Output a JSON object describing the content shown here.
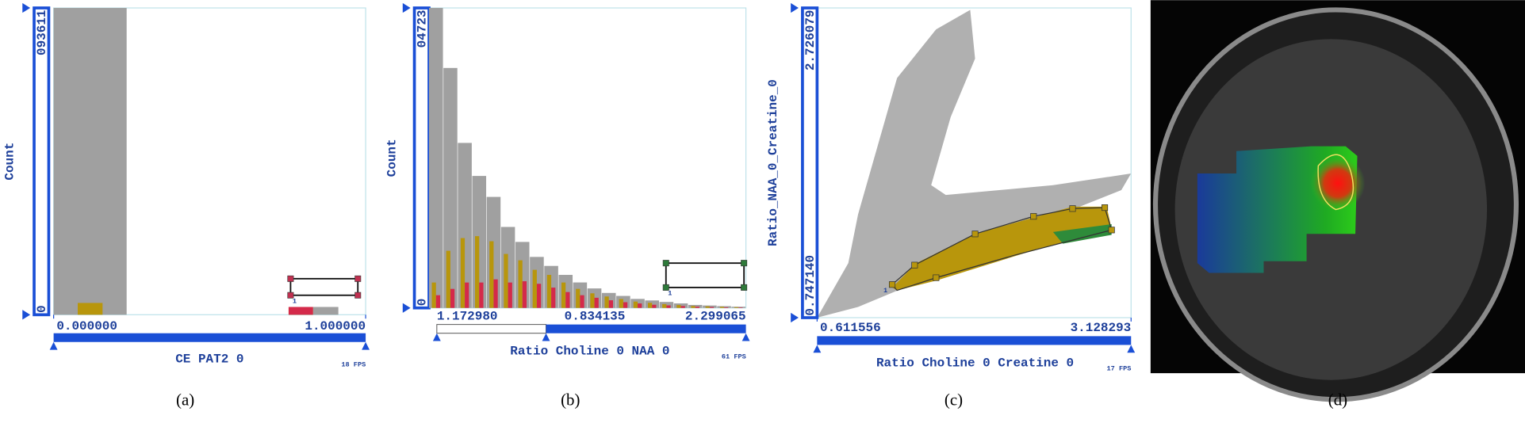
{
  "captions": [
    "(a)",
    "(b)",
    "(c)",
    "(d)"
  ],
  "chart_data": [
    {
      "type": "histogram",
      "y_label": "Count",
      "x_label": "CE PAT2 0",
      "fps": "18 FPS",
      "widget_label": "1",
      "xlim": [
        0,
        1
      ],
      "xticks": [
        {
          "value": 0,
          "label": "0.000000"
        },
        {
          "value": 1,
          "label": "1.000000"
        }
      ],
      "ylim": [
        0,
        93611
      ],
      "yticks": [
        0,
        {
          "value": 93611,
          "label": "093611"
        }
      ],
      "bins": [
        0,
        0.234
      ],
      "series": [
        {
          "color": "#a0a0a0",
          "values": [
            93611
          ]
        },
        {
          "color": "#b8960c",
          "values": [
            3600
          ]
        }
      ]
    },
    {
      "type": "bar",
      "y_label": "Count",
      "x_label": "Ratio Choline 0 NAA 0",
      "fps": "61 FPS",
      "widget_label": "1",
      "x_labels": [
        "1.172980",
        "0.834135",
        "2.299065"
      ],
      "ylim": [
        0,
        4723
      ],
      "yticks": [
        0,
        {
          "value": 4723,
          "label": "04723"
        }
      ],
      "categories": [
        null,
        null,
        null,
        null,
        null,
        null,
        null,
        null,
        null,
        null,
        null,
        null,
        null,
        null,
        null,
        null,
        null,
        null,
        null,
        null,
        null,
        null
      ],
      "series": [
        {
          "color": "#a0a0a0",
          "values": [
            4723,
            3778,
            2598,
            2078,
            1748,
            1275,
            1039,
            803,
            661,
            520,
            401,
            307,
            236,
            189,
            142,
            118,
            94,
            71,
            47,
            38,
            28,
            19
          ]
        },
        {
          "color": "#b8960c",
          "values": [
            400,
            900,
            1100,
            1130,
            1050,
            850,
            750,
            600,
            520,
            400,
            300,
            230,
            180,
            140,
            100,
            80,
            60,
            45,
            30,
            25,
            18,
            12
          ]
        },
        {
          "color": "#d42a4a",
          "values": [
            200,
            300,
            400,
            400,
            450,
            400,
            420,
            380,
            320,
            250,
            200,
            160,
            120,
            90,
            70,
            50,
            40,
            30,
            20,
            15,
            10,
            8
          ]
        }
      ]
    },
    {
      "type": "scatter",
      "y_label": "Ratio_NAA_0_Creatine_0",
      "x_label": "Ratio Choline 0 Creatine 0",
      "fps": "17 FPS",
      "widget_label": "1",
      "xlim": [
        0.611556,
        3.128293
      ],
      "xticks": [
        0.611556,
        3.128293
      ],
      "ylim": [
        0.74714,
        2.726079
      ],
      "yticks": [
        {
          "value": 0.74714,
          "label": "0.747140"
        },
        2.726079
      ]
    }
  ]
}
